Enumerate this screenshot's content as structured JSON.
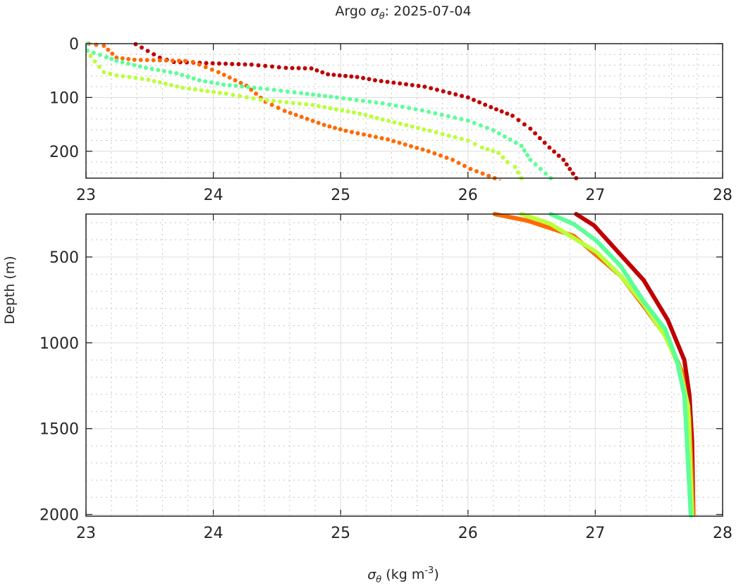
{
  "chart_data": {
    "type": "scatter",
    "title_prefix": "Argo ",
    "title_symbol": "σ",
    "title_sub": "θ",
    "title_suffix": ": 2025-07-04",
    "xlabel_symbol": "σ",
    "xlabel_sub": "θ",
    "xlabel_units": " (kg m",
    "xlabel_exp": "-3",
    "xlabel_close": ")",
    "ylabel": "Depth (m)",
    "xlim": [
      23,
      28
    ],
    "panels": [
      {
        "name": "upper",
        "ylim": [
          0,
          250
        ],
        "yticks": [
          "0",
          "100",
          "200"
        ],
        "yminor": 20,
        "yreversed": true
      },
      {
        "name": "lower",
        "ylim": [
          250,
          2010
        ],
        "yticks": [
          "500",
          "1000",
          "1500",
          "2000"
        ],
        "yminor": 100,
        "yreversed": true
      }
    ],
    "xticks": [
      "23",
      "24",
      "25",
      "26",
      "27",
      "28"
    ],
    "grid": true,
    "series": [
      {
        "name": "profile-dark-red",
        "color": "#c00000",
        "points": [
          [
            23.39,
            1
          ],
          [
            23.58,
            26
          ],
          [
            23.69,
            34
          ],
          [
            24.3,
            39
          ],
          [
            24.57,
            45
          ],
          [
            24.77,
            46
          ],
          [
            24.9,
            57
          ],
          [
            25.13,
            62
          ],
          [
            25.27,
            68
          ],
          [
            25.66,
            80
          ],
          [
            26.0,
            100
          ],
          [
            26.18,
            118
          ],
          [
            26.35,
            134
          ],
          [
            26.49,
            158
          ],
          [
            26.64,
            193
          ],
          [
            26.75,
            216
          ],
          [
            26.85,
            250
          ],
          [
            26.99,
            316
          ],
          [
            27.2,
            488
          ],
          [
            27.38,
            635
          ],
          [
            27.57,
            868
          ],
          [
            27.7,
            1101
          ],
          [
            27.74,
            1306
          ],
          [
            27.76,
            1576
          ],
          [
            27.77,
            2002
          ]
        ]
      },
      {
        "name": "profile-orange",
        "color": "#ff6a00",
        "points": [
          [
            23.02,
            0
          ],
          [
            23.14,
            4
          ],
          [
            23.24,
            26
          ],
          [
            23.38,
            30
          ],
          [
            23.78,
            32
          ],
          [
            23.84,
            34
          ],
          [
            24.04,
            53
          ],
          [
            24.26,
            78
          ],
          [
            24.41,
            108
          ],
          [
            24.56,
            125
          ],
          [
            24.87,
            151
          ],
          [
            25.04,
            162
          ],
          [
            25.37,
            178
          ],
          [
            25.69,
            200
          ],
          [
            25.88,
            216
          ],
          [
            26.02,
            233
          ],
          [
            26.21,
            250
          ],
          [
            26.46,
            287
          ],
          [
            26.7,
            345
          ],
          [
            26.83,
            377
          ],
          [
            26.98,
            471
          ],
          [
            27.2,
            610
          ],
          [
            27.38,
            786
          ],
          [
            27.57,
            979
          ],
          [
            27.68,
            1167
          ],
          [
            27.74,
            1441
          ],
          [
            27.77,
            2002
          ]
        ]
      },
      {
        "name": "profile-yellow-green",
        "color": "#bbff3a",
        "points": [
          [
            23.0,
            13
          ],
          [
            23.14,
            53
          ],
          [
            23.24,
            59
          ],
          [
            23.49,
            67
          ],
          [
            23.76,
            82
          ],
          [
            24.1,
            93
          ],
          [
            24.37,
            104
          ],
          [
            24.78,
            114
          ],
          [
            25.15,
            130
          ],
          [
            25.33,
            141
          ],
          [
            25.7,
            162
          ],
          [
            26.0,
            180
          ],
          [
            26.11,
            193
          ],
          [
            26.24,
            203
          ],
          [
            26.31,
            220
          ],
          [
            26.37,
            229
          ],
          [
            26.42,
            250
          ],
          [
            26.64,
            304
          ],
          [
            26.83,
            390
          ],
          [
            27.01,
            471
          ],
          [
            27.2,
            610
          ],
          [
            27.38,
            774
          ],
          [
            27.55,
            962
          ],
          [
            27.66,
            1142
          ],
          [
            27.73,
            1371
          ],
          [
            27.76,
            2006
          ]
        ]
      },
      {
        "name": "profile-aquamarine",
        "color": "#5cff98",
        "points": [
          [
            23.01,
            0
          ],
          [
            23.01,
            13
          ],
          [
            23.16,
            25
          ],
          [
            23.24,
            32
          ],
          [
            23.47,
            45
          ],
          [
            23.71,
            55
          ],
          [
            23.89,
            68
          ],
          [
            24.08,
            76
          ],
          [
            24.37,
            83
          ],
          [
            24.69,
            92
          ],
          [
            24.97,
            100
          ],
          [
            25.33,
            111
          ],
          [
            25.64,
            124
          ],
          [
            26.0,
            143
          ],
          [
            26.2,
            161
          ],
          [
            26.42,
            190
          ],
          [
            26.49,
            216
          ],
          [
            26.65,
            250
          ],
          [
            26.83,
            308
          ],
          [
            27.01,
            406
          ],
          [
            27.2,
            553
          ],
          [
            27.38,
            758
          ],
          [
            27.55,
            921
          ],
          [
            27.64,
            1101
          ],
          [
            27.7,
            1306
          ],
          [
            27.72,
            1576
          ],
          [
            27.75,
            2006
          ]
        ]
      }
    ]
  }
}
